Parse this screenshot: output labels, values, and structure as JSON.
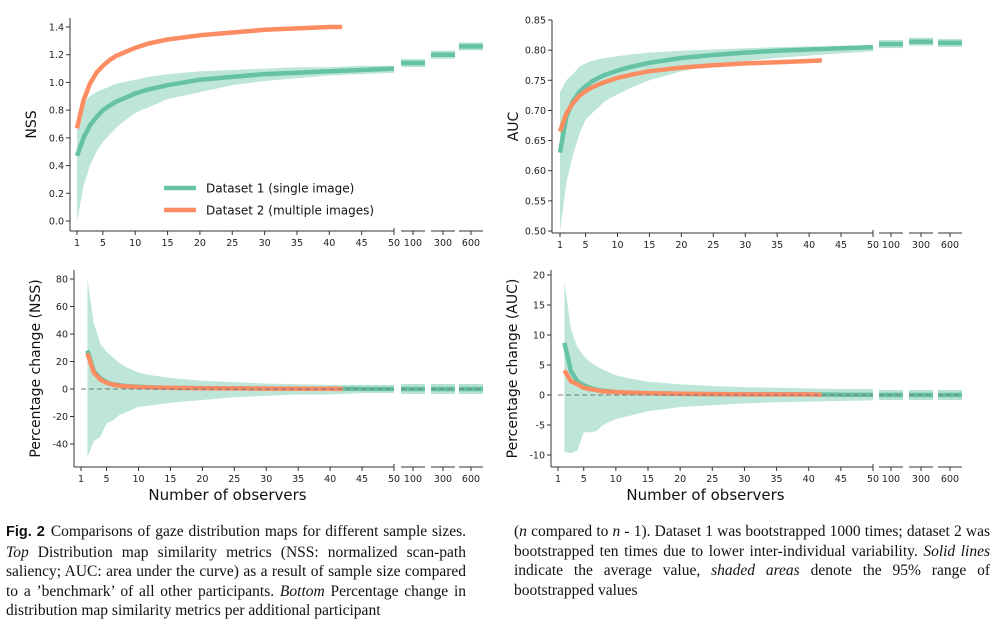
{
  "colors": {
    "dataset1": "#66c2a5",
    "dataset1_band": "#b7e3d4",
    "dataset2": "#fc8d62",
    "axis": "#333333",
    "zero_line": "#777777"
  },
  "legend": {
    "items": [
      {
        "label": "Dataset 1 (single image)",
        "color": "#66c2a5"
      },
      {
        "label": "Dataset 2 (multiple images)",
        "color": "#fc8d62"
      }
    ],
    "placement": "lower-center of top-left panel"
  },
  "chart_data": [
    {
      "id": "nss",
      "type": "line",
      "title": "",
      "xlabel": "",
      "ylabel": "NSS",
      "ylim": [
        0.0,
        1.4
      ],
      "yticks": [
        "0.0",
        "0.2",
        "0.4",
        "0.6",
        "0.8",
        "1.0",
        "1.2",
        "1.4"
      ],
      "xticks": [
        "1",
        "5",
        "10",
        "15",
        "20",
        "25",
        "30",
        "35",
        "40",
        "45",
        "50"
      ],
      "broken_xticks": [
        "100",
        "300",
        "600"
      ],
      "series": [
        {
          "name": "Dataset 1 (single image)",
          "x": [
            1,
            2,
            3,
            4,
            5,
            6,
            7,
            8,
            10,
            12,
            15,
            20,
            25,
            30,
            35,
            40,
            45,
            50
          ],
          "values": [
            0.47,
            0.6,
            0.69,
            0.75,
            0.8,
            0.83,
            0.86,
            0.88,
            0.92,
            0.95,
            0.98,
            1.02,
            1.04,
            1.06,
            1.07,
            1.08,
            1.09,
            1.1
          ],
          "band_low": [
            0.0,
            0.25,
            0.4,
            0.5,
            0.57,
            0.62,
            0.67,
            0.71,
            0.78,
            0.82,
            0.88,
            0.93,
            0.98,
            1.01,
            1.03,
            1.05,
            1.06,
            1.07
          ],
          "band_high": [
            0.75,
            0.85,
            0.9,
            0.93,
            0.95,
            0.97,
            0.99,
            1.0,
            1.02,
            1.04,
            1.06,
            1.08,
            1.09,
            1.1,
            1.11,
            1.11,
            1.12,
            1.12
          ],
          "broken_values": [
            1.14,
            1.2,
            1.26
          ]
        },
        {
          "name": "Dataset 2 (multiple images)",
          "x": [
            1,
            2,
            3,
            4,
            5,
            6,
            7,
            8,
            10,
            12,
            15,
            20,
            25,
            30,
            35,
            40,
            42
          ],
          "values": [
            0.67,
            0.87,
            0.99,
            1.07,
            1.12,
            1.16,
            1.19,
            1.21,
            1.25,
            1.28,
            1.31,
            1.34,
            1.36,
            1.38,
            1.39,
            1.4,
            1.4
          ]
        }
      ]
    },
    {
      "id": "auc",
      "type": "line",
      "title": "",
      "xlabel": "",
      "ylabel": "AUC",
      "ylim": [
        0.5,
        0.85
      ],
      "yticks": [
        "0.50",
        "0.55",
        "0.60",
        "0.65",
        "0.70",
        "0.75",
        "0.80",
        "0.85"
      ],
      "xticks": [
        "1",
        "5",
        "10",
        "15",
        "20",
        "25",
        "30",
        "35",
        "40",
        "45",
        "50"
      ],
      "broken_xticks": [
        "100",
        "300",
        "600"
      ],
      "series": [
        {
          "name": "Dataset 1 (single image)",
          "x": [
            1,
            2,
            3,
            4,
            5,
            6,
            7,
            8,
            10,
            12,
            15,
            20,
            25,
            30,
            35,
            40,
            45,
            50
          ],
          "values": [
            0.63,
            0.69,
            0.715,
            0.73,
            0.74,
            0.748,
            0.754,
            0.759,
            0.766,
            0.772,
            0.779,
            0.787,
            0.792,
            0.796,
            0.799,
            0.801,
            0.803,
            0.805
          ],
          "band_low": [
            0.5,
            0.58,
            0.625,
            0.66,
            0.685,
            0.695,
            0.705,
            0.715,
            0.727,
            0.737,
            0.75,
            0.765,
            0.775,
            0.782,
            0.787,
            0.791,
            0.795,
            0.798
          ],
          "band_high": [
            0.73,
            0.75,
            0.76,
            0.772,
            0.778,
            0.782,
            0.785,
            0.787,
            0.79,
            0.793,
            0.796,
            0.799,
            0.801,
            0.803,
            0.805,
            0.806,
            0.807,
            0.808
          ],
          "broken_values": [
            0.81,
            0.814,
            0.812
          ]
        },
        {
          "name": "Dataset 2 (multiple images)",
          "x": [
            1,
            2,
            3,
            4,
            5,
            6,
            7,
            8,
            10,
            12,
            15,
            20,
            25,
            30,
            35,
            40,
            42
          ],
          "values": [
            0.665,
            0.695,
            0.712,
            0.724,
            0.732,
            0.738,
            0.743,
            0.747,
            0.754,
            0.759,
            0.765,
            0.771,
            0.775,
            0.778,
            0.78,
            0.782,
            0.783
          ]
        }
      ]
    },
    {
      "id": "nss_pct",
      "type": "line",
      "title": "",
      "xlabel": "Number of observers",
      "ylabel": "Percentage change (NSS)",
      "ylim": [
        -55,
        85
      ],
      "yticks": [
        "-40",
        "-20",
        "0",
        "20",
        "40",
        "60",
        "80"
      ],
      "xticks": [
        "1",
        "5",
        "10",
        "15",
        "20",
        "25",
        "30",
        "35",
        "40",
        "45",
        "50"
      ],
      "broken_xticks": [
        "100",
        "300",
        "600"
      ],
      "reference_line": 0,
      "series": [
        {
          "name": "Dataset 1 (single image)",
          "x": [
            2,
            3,
            4,
            5,
            6,
            7,
            8,
            10,
            12,
            15,
            20,
            25,
            30,
            35,
            40,
            45,
            50
          ],
          "values": [
            28,
            13,
            8,
            5,
            3.5,
            2.8,
            2.2,
            1.6,
            1.2,
            0.9,
            0.6,
            0.4,
            0.3,
            0.2,
            0.2,
            0.1,
            0.1
          ],
          "band_low": [
            -50,
            -38,
            -35,
            -25,
            -23,
            -19,
            -17,
            -13,
            -12,
            -10,
            -8,
            -6,
            -5,
            -4,
            -4,
            -3,
            -3
          ],
          "band_high": [
            80,
            48,
            33,
            27,
            23,
            19,
            16,
            12,
            10,
            8,
            6,
            5,
            4,
            3.5,
            3,
            3,
            3
          ],
          "broken_values": [
            0,
            0,
            0
          ]
        },
        {
          "name": "Dataset 2 (multiple images)",
          "x": [
            2,
            3,
            4,
            5,
            6,
            7,
            8,
            10,
            12,
            15,
            20,
            25,
            30,
            35,
            40,
            42
          ],
          "values": [
            26,
            12,
            7,
            4.5,
            3.2,
            2.5,
            2,
            1.4,
            1.1,
            0.8,
            0.5,
            0.4,
            0.3,
            0.2,
            0.2,
            0.1
          ]
        }
      ]
    },
    {
      "id": "auc_pct",
      "type": "line",
      "title": "",
      "xlabel": "Number of observers",
      "ylabel": "Percentage change (AUC)",
      "ylim": [
        -12,
        20.5
      ],
      "yticks": [
        "-10",
        "-5",
        "0",
        "5",
        "10",
        "15",
        "20"
      ],
      "xticks": [
        "1",
        "5",
        "10",
        "15",
        "20",
        "25",
        "30",
        "35",
        "40",
        "45",
        "50"
      ],
      "broken_xticks": [
        "100",
        "300",
        "600"
      ],
      "reference_line": 0,
      "series": [
        {
          "name": "Dataset 1 (single image)",
          "x": [
            2,
            3,
            4,
            5,
            6,
            7,
            8,
            10,
            12,
            15,
            20,
            25,
            30,
            35,
            40,
            45,
            50
          ],
          "values": [
            8.7,
            4,
            2.3,
            1.6,
            1.2,
            0.9,
            0.7,
            0.5,
            0.4,
            0.3,
            0.2,
            0.15,
            0.1,
            0.1,
            0.1,
            0.05,
            0.05
          ],
          "band_low": [
            -9.5,
            -9.7,
            -9.3,
            -6.2,
            -6.2,
            -6,
            -5,
            -4,
            -3.5,
            -2.7,
            -2,
            -1.7,
            -1.4,
            -1.2,
            -1.1,
            -1,
            -0.9
          ],
          "band_high": [
            19,
            11,
            8,
            6.5,
            5.5,
            4.8,
            4.2,
            3.3,
            2.8,
            2.2,
            1.8,
            1.5,
            1.3,
            1.2,
            1.1,
            1,
            1
          ],
          "broken_values": [
            0,
            0,
            0
          ]
        },
        {
          "name": "Dataset 2 (multiple images)",
          "x": [
            2,
            3,
            4,
            5,
            6,
            7,
            8,
            10,
            12,
            15,
            20,
            25,
            30,
            35,
            40,
            42
          ],
          "values": [
            4.1,
            2.3,
            1.8,
            1.2,
            1,
            0.8,
            0.6,
            0.5,
            0.4,
            0.3,
            0.2,
            0.15,
            0.1,
            0.1,
            0.1,
            0.05
          ]
        }
      ]
    }
  ],
  "caption": {
    "fig_label": "Fig. 2",
    "left_text_1": "Comparisons of gaze distribution maps for different sample sizes. ",
    "left_italic_1": "Top",
    "left_text_2": " Distribution map similarity metrics (NSS: normalized scan-path saliency; AUC: area under the curve) as a result of sample size compared to a ’benchmark’ of all other participants. ",
    "left_italic_2": "Bottom",
    "left_text_3": " Percentage change in distribution map similarity metrics per additional participant",
    "right_text_1": "(",
    "right_italic_n1": "n",
    "right_text_2": " compared to ",
    "right_italic_n2": "n",
    "right_text_3": " - 1). Dataset 1 was bootstrapped 1000 times; dataset 2 was bootstrapped ten times due to lower inter-individual variability. ",
    "right_italic_1": "Solid lines",
    "right_text_4": " indicate the average value, ",
    "right_italic_2": "shaded areas",
    "right_text_5": " denote the 95% range of bootstrapped values"
  }
}
